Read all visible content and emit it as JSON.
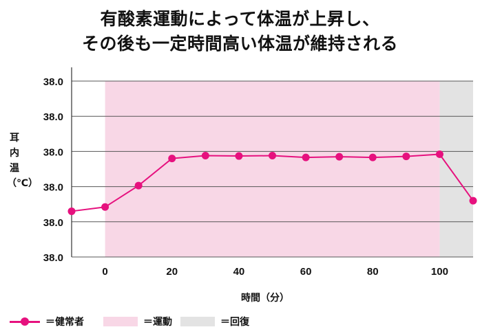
{
  "title_lines": [
    "有酸素運動によって体温が上昇し、",
    "その後も一定時間高い体温が維持される"
  ],
  "chart_data": {
    "type": "line",
    "title": "有酸素運動によって体温が上昇し、その後も一定時間高い体温が維持される",
    "xlabel": "時間（分）",
    "ylabel": "耳内温（℃）",
    "x_ticks": [
      0,
      20,
      40,
      60,
      80,
      100
    ],
    "y_tick_labels": [
      "38.0",
      "38.0",
      "38.0",
      "38.0",
      "38.0",
      "38.0"
    ],
    "xlim": [
      -10,
      110
    ],
    "ylim": [
      0,
      5
    ],
    "series": [
      {
        "name": "健常者",
        "color": "#e6117e",
        "x": [
          -10,
          0,
          10,
          20,
          30,
          40,
          50,
          60,
          70,
          80,
          90,
          100,
          110
        ],
        "y": [
          1.3,
          1.42,
          2.03,
          2.8,
          2.88,
          2.87,
          2.88,
          2.83,
          2.85,
          2.83,
          2.86,
          2.92,
          1.6
        ]
      }
    ],
    "shaded_regions": [
      {
        "name": "運動",
        "from": 0,
        "to": 100,
        "color": "#f8d7e6"
      },
      {
        "name": "回復",
        "from": 100,
        "to": 110,
        "color": "#e3e3e3"
      }
    ],
    "grid": "horizontal",
    "legend_position": "bottom"
  },
  "legend": {
    "healthy": "＝健常者",
    "exercise": "＝運動",
    "recovery": "＝回復"
  }
}
